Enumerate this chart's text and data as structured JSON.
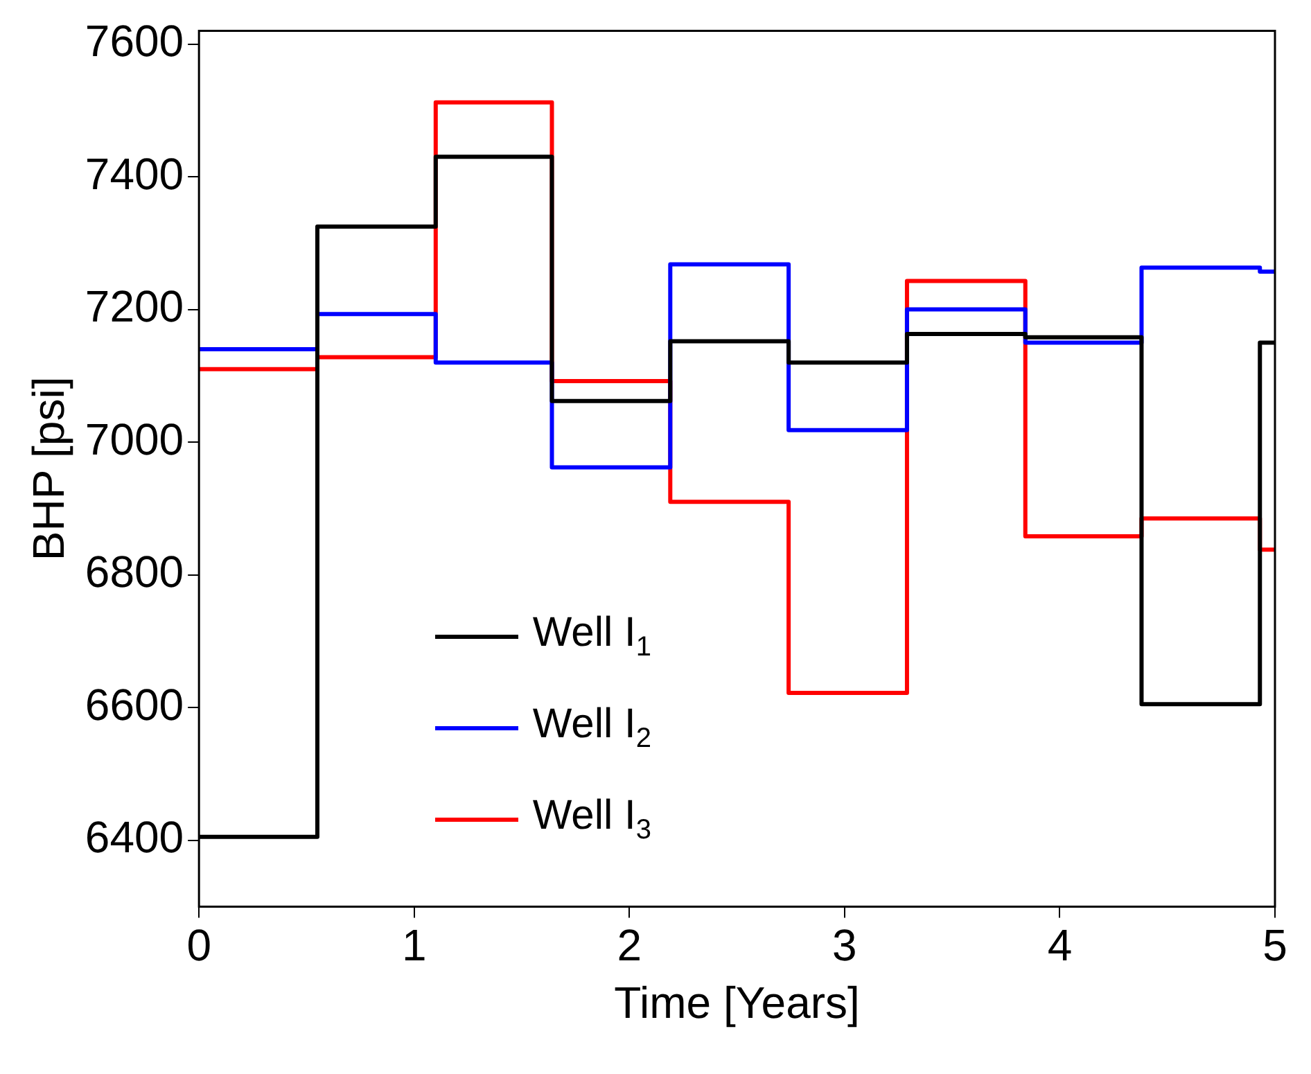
{
  "chart_data": {
    "type": "step",
    "xlabel": "Time [Years]",
    "ylabel": "BHP [psi]",
    "x": [
      0,
      0.55,
      1.1,
      1.64,
      2.19,
      2.74,
      3.29,
      3.84,
      4.38,
      4.93,
      5
    ],
    "series": [
      {
        "name": "Well I$_{1}$",
        "color": "#000000",
        "values": [
          6405,
          7325,
          7430,
          7062,
          7152,
          7120,
          7163,
          7158,
          6605,
          7150,
          7150
        ]
      },
      {
        "name": "Well I$_{2}$",
        "color": "#0000ff",
        "values": [
          7140,
          7193,
          7120,
          6962,
          7268,
          7018,
          7200,
          7150,
          7263,
          7257,
          7257
        ]
      },
      {
        "name": "Well I$_{3}$",
        "color": "#ff0000",
        "values": [
          7110,
          7128,
          7512,
          7092,
          6910,
          6622,
          7243,
          6858,
          6885,
          6838,
          6838
        ]
      }
    ],
    "xlim": [
      0,
      5
    ],
    "xticks": [
      0,
      1,
      2,
      3,
      4,
      5
    ],
    "ylim": [
      6300,
      7620
    ],
    "yticks": [
      6400,
      6600,
      6800,
      7000,
      7200,
      7400,
      7600
    ],
    "grid": false,
    "legend": "bottom left",
    "marker": "none",
    "line_style": "solid"
  }
}
